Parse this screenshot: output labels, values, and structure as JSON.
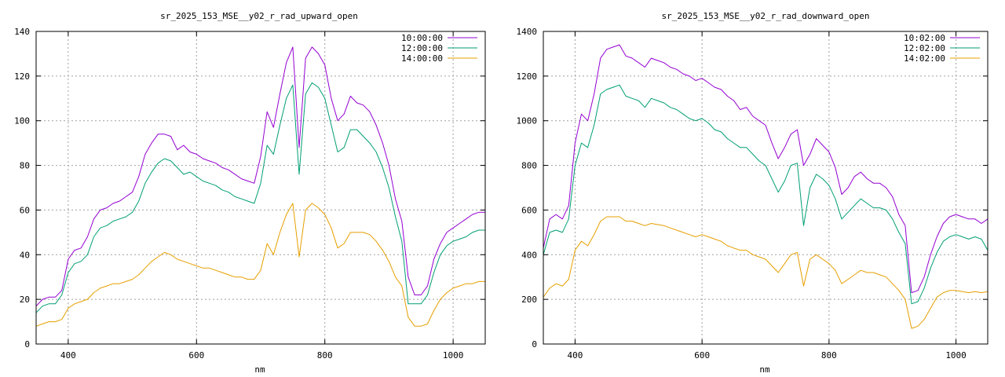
{
  "chart_data": [
    {
      "type": "line",
      "title": "sr_2025_153_MSE__y02_r_rad_upward_open",
      "xlabel": "nm",
      "ylabel": "",
      "xlim": [
        350,
        1050
      ],
      "ylim": [
        0,
        140
      ],
      "xticks": [
        400,
        600,
        800,
        1000
      ],
      "yticks": [
        0,
        20,
        40,
        60,
        80,
        100,
        120,
        140
      ],
      "grid": true,
      "legend_position": "top-right",
      "x": [
        350,
        360,
        370,
        380,
        390,
        400,
        410,
        420,
        430,
        440,
        450,
        460,
        470,
        480,
        490,
        500,
        510,
        520,
        530,
        540,
        550,
        560,
        570,
        580,
        590,
        600,
        610,
        620,
        630,
        640,
        650,
        660,
        670,
        680,
        690,
        700,
        710,
        720,
        730,
        740,
        750,
        760,
        770,
        780,
        790,
        800,
        810,
        820,
        830,
        840,
        850,
        860,
        870,
        880,
        890,
        900,
        910,
        920,
        930,
        940,
        950,
        960,
        970,
        980,
        990,
        1000,
        1010,
        1020,
        1030,
        1040,
        1050
      ],
      "series": [
        {
          "name": "10:00:00",
          "color": "#9400d3",
          "values": [
            17,
            20,
            21,
            21,
            24,
            38,
            42,
            43,
            48,
            56,
            60,
            61,
            63,
            64,
            66,
            68,
            75,
            85,
            90,
            94,
            94,
            93,
            87,
            89,
            86,
            85,
            83,
            82,
            81,
            79,
            78,
            76,
            74,
            73,
            72,
            84,
            104,
            97,
            112,
            126,
            133,
            88,
            128,
            133,
            130,
            125,
            110,
            100,
            103,
            111,
            108,
            107,
            104,
            98,
            90,
            80,
            65,
            55,
            30,
            22,
            22,
            26,
            38,
            45,
            50,
            52,
            54,
            56,
            58,
            59,
            59
          ]
        },
        {
          "name": "12:00:00",
          "color": "#009e73",
          "values": [
            14,
            17,
            18,
            18,
            22,
            32,
            36,
            37,
            40,
            48,
            52,
            53,
            55,
            56,
            57,
            59,
            64,
            72,
            77,
            81,
            83,
            82,
            79,
            76,
            77,
            75,
            73,
            72,
            71,
            69,
            68,
            66,
            65,
            64,
            63,
            72,
            89,
            85,
            98,
            110,
            116,
            76,
            112,
            117,
            115,
            110,
            98,
            86,
            88,
            96,
            96,
            93,
            90,
            86,
            79,
            70,
            57,
            46,
            18,
            18,
            18,
            22,
            32,
            40,
            44,
            46,
            47,
            48,
            50,
            51,
            51
          ]
        },
        {
          "name": "14:00:00",
          "color": "#e69f00",
          "values": [
            8,
            9,
            10,
            10,
            11,
            16,
            18,
            19,
            20,
            23,
            25,
            26,
            27,
            27,
            28,
            29,
            31,
            34,
            37,
            39,
            41,
            40,
            38,
            37,
            36,
            35,
            34,
            34,
            33,
            32,
            31,
            30,
            30,
            29,
            29,
            33,
            45,
            40,
            50,
            58,
            63,
            39,
            60,
            63,
            61,
            58,
            52,
            43,
            45,
            50,
            50,
            50,
            49,
            46,
            42,
            37,
            30,
            26,
            12,
            8,
            8,
            9,
            15,
            20,
            23,
            25,
            26,
            27,
            27,
            28,
            28
          ]
        }
      ]
    },
    {
      "type": "line",
      "title": "sr_2025_153_MSE__y02_r_rad_downward_open",
      "xlabel": "nm",
      "ylabel": "",
      "xlim": [
        350,
        1050
      ],
      "ylim": [
        0,
        1400
      ],
      "xticks": [
        400,
        600,
        800,
        1000
      ],
      "yticks": [
        0,
        200,
        400,
        600,
        800,
        1000,
        1200,
        1400
      ],
      "grid": true,
      "legend_position": "top-right",
      "x": [
        350,
        360,
        370,
        380,
        390,
        400,
        410,
        420,
        430,
        440,
        450,
        460,
        470,
        480,
        490,
        500,
        510,
        520,
        530,
        540,
        550,
        560,
        570,
        580,
        590,
        600,
        610,
        620,
        630,
        640,
        650,
        660,
        670,
        680,
        690,
        700,
        710,
        720,
        730,
        740,
        750,
        760,
        770,
        780,
        790,
        800,
        810,
        820,
        830,
        840,
        850,
        860,
        870,
        880,
        890,
        900,
        910,
        920,
        930,
        940,
        950,
        960,
        970,
        980,
        990,
        1000,
        1010,
        1020,
        1030,
        1040,
        1050
      ],
      "series": [
        {
          "name": "10:02:00",
          "color": "#9400d3",
          "values": [
            430,
            560,
            580,
            560,
            620,
            900,
            1030,
            1000,
            1120,
            1280,
            1320,
            1330,
            1340,
            1290,
            1280,
            1260,
            1240,
            1280,
            1270,
            1260,
            1240,
            1230,
            1210,
            1200,
            1180,
            1190,
            1170,
            1150,
            1140,
            1110,
            1090,
            1050,
            1060,
            1020,
            1000,
            980,
            900,
            830,
            880,
            940,
            960,
            800,
            850,
            920,
            890,
            860,
            790,
            670,
            700,
            750,
            770,
            740,
            720,
            720,
            700,
            660,
            580,
            530,
            230,
            240,
            300,
            400,
            480,
            540,
            570,
            580,
            570,
            560,
            560,
            540,
            560
          ]
        },
        {
          "name": "12:02:00",
          "color": "#009e73",
          "values": [
            400,
            500,
            510,
            500,
            560,
            800,
            900,
            880,
            980,
            1120,
            1140,
            1150,
            1160,
            1110,
            1100,
            1090,
            1060,
            1100,
            1090,
            1080,
            1060,
            1050,
            1030,
            1010,
            1000,
            1010,
            990,
            960,
            950,
            920,
            900,
            880,
            880,
            850,
            820,
            800,
            740,
            680,
            730,
            800,
            810,
            530,
            700,
            760,
            740,
            710,
            650,
            560,
            590,
            620,
            650,
            630,
            610,
            610,
            600,
            560,
            500,
            450,
            180,
            190,
            250,
            340,
            410,
            460,
            480,
            490,
            480,
            470,
            480,
            470,
            420
          ]
        },
        {
          "name": "14:02:00",
          "color": "#e69f00",
          "values": [
            210,
            250,
            270,
            260,
            290,
            420,
            460,
            440,
            490,
            550,
            570,
            570,
            570,
            550,
            550,
            540,
            530,
            540,
            535,
            530,
            520,
            510,
            500,
            490,
            480,
            490,
            480,
            470,
            460,
            440,
            430,
            420,
            420,
            400,
            390,
            380,
            350,
            320,
            360,
            400,
            410,
            260,
            380,
            400,
            380,
            360,
            330,
            270,
            290,
            310,
            330,
            320,
            320,
            310,
            300,
            270,
            240,
            200,
            70,
            80,
            110,
            160,
            210,
            230,
            240,
            240,
            235,
            230,
            235,
            230,
            235
          ]
        }
      ]
    }
  ]
}
